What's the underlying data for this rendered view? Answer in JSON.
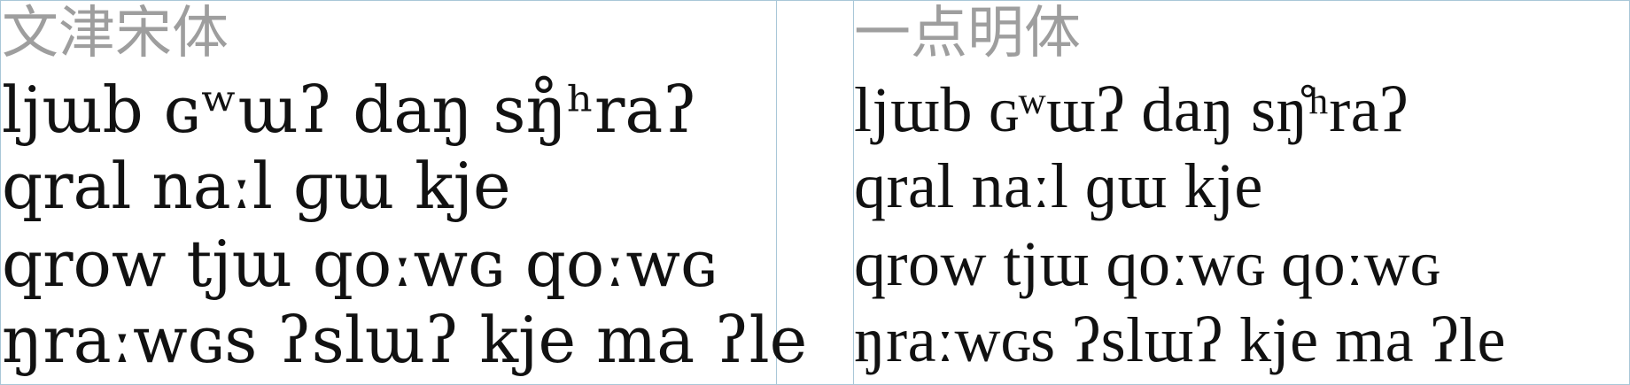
{
  "colors": {
    "font_name": "#9e9e9e",
    "sample_text": "#111111",
    "guide_lines": "#a9c7d8"
  },
  "panels": [
    {
      "font_name": "文津宋体",
      "lines": [
        "ljɯb ɢʷɯʔ daŋ sŋ̊ʰraʔ",
        "qral naːl ɡɯ kje",
        "qrow tjɯ qoːwɢ qoːwɢ",
        "ŋraːwɢs ʔslɯʔ kje ma ʔle"
      ]
    },
    {
      "font_name": "一点明体",
      "lines": [
        "ljɯb ɢʷɯʔ daŋ sŋ̊ʰraʔ",
        "qral naːl ɡɯ kje",
        "qrow tjɯ qoːwɢ qoːwɢ",
        "ŋraːwɢs ʔslɯʔ kje ma ʔle"
      ]
    }
  ]
}
